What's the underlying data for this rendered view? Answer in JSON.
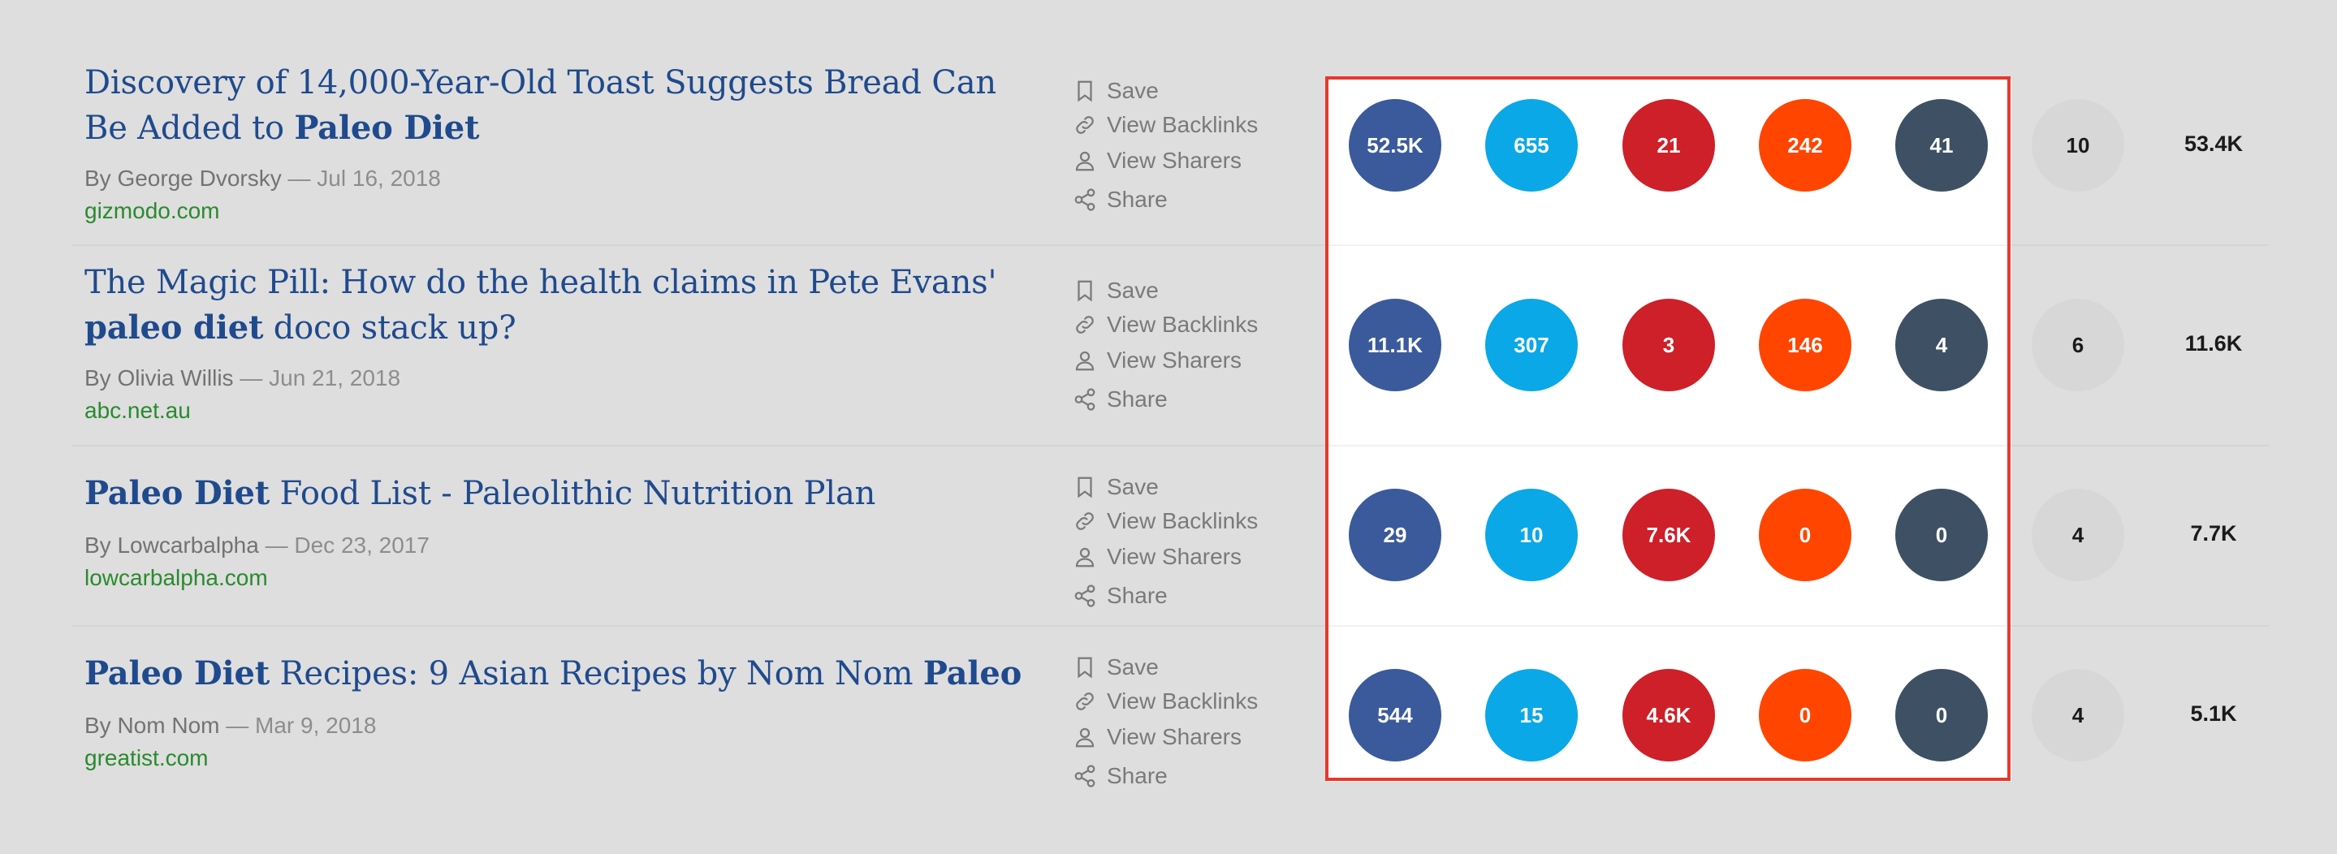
{
  "actions": {
    "save": "Save",
    "backlinks": "View Backlinks",
    "sharers": "View Sharers",
    "share": "Share"
  },
  "colors": {
    "facebook": "#3a5a9b",
    "twitter": "#0aa8e6",
    "pinterest": "#cd2029",
    "reddit": "#ff4500",
    "dark_metric": "#3e5064",
    "evergreen": "#d7d7d7",
    "title": "#1f4a8d",
    "domain": "#2a8a2e",
    "highlight": "#e8382b"
  },
  "articles": [
    {
      "title_parts": [
        {
          "text": "Discovery of 14,000-Year-Old Toast Suggests Bread Can Be Added to ",
          "bold": false
        },
        {
          "text": "Paleo Diet",
          "bold": true
        }
      ],
      "author": "By George Dvorsky",
      "date": " — Jul 16, 2018",
      "domain": "gizmodo.com",
      "metrics": [
        "52.5K",
        "655",
        "21",
        "242",
        "41"
      ],
      "evergreen": "10",
      "total": "53.4K"
    },
    {
      "title_parts": [
        {
          "text": "The Magic Pill: How do the health claims in Pete Evans' ",
          "bold": false
        },
        {
          "text": "paleo diet",
          "bold": true
        },
        {
          "text": " doco stack up?",
          "bold": false
        }
      ],
      "author": "By Olivia Willis",
      "date": " — Jun 21, 2018",
      "domain": "abc.net.au",
      "metrics": [
        "11.1K",
        "307",
        "3",
        "146",
        "4"
      ],
      "evergreen": "6",
      "total": "11.6K"
    },
    {
      "title_parts": [
        {
          "text": "Paleo Diet",
          "bold": true
        },
        {
          "text": " Food List - Paleolithic Nutrition Plan",
          "bold": false
        }
      ],
      "author": "By Lowcarbalpha",
      "date": " — Dec 23, 2017",
      "domain": "lowcarbalpha.com",
      "metrics": [
        "29",
        "10",
        "7.6K",
        "0",
        "0"
      ],
      "evergreen": "4",
      "total": "7.7K"
    },
    {
      "title_parts": [
        {
          "text": "Paleo Diet",
          "bold": true
        },
        {
          "text": " Recipes: 9 Asian Recipes by Nom Nom ",
          "bold": false
        },
        {
          "text": "Paleo",
          "bold": true
        }
      ],
      "author": "By Nom Nom",
      "date": " — Mar 9, 2018",
      "domain": "greatist.com",
      "metrics": [
        "544",
        "15",
        "4.6K",
        "0",
        "0"
      ],
      "evergreen": "4",
      "total": "5.1K"
    }
  ]
}
